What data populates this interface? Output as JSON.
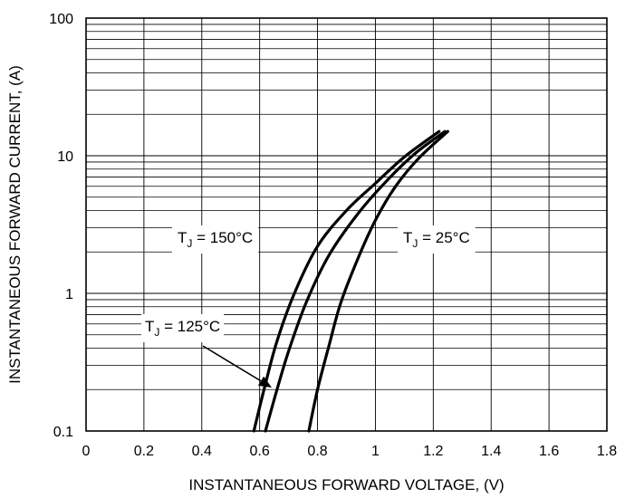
{
  "chart_data": {
    "type": "line",
    "title": "",
    "xlabel": "INSTANTANEOUS FORWARD VOLTAGE, (V)",
    "ylabel": "INSTANTANEOUS FORWARD CURRENT, (A)",
    "xlim": [
      0,
      1.8
    ],
    "ylim": [
      0.1,
      100
    ],
    "yscale": "log",
    "grid": true,
    "x_ticks": [
      0,
      0.2,
      0.4,
      0.6,
      0.8,
      1,
      1.2,
      1.4,
      1.6,
      1.8
    ],
    "x_tick_labels": [
      "0",
      "0.2",
      "0.4",
      "0.6",
      "0.8",
      "1",
      "1.2",
      "1.4",
      "1.6",
      "1.8"
    ],
    "y_ticks": [
      0.1,
      1,
      10,
      100
    ],
    "y_tick_labels": [
      "0.1",
      "1",
      "10",
      "100"
    ],
    "series": [
      {
        "name": "T_J = 150°C",
        "x": [
          0.58,
          0.62,
          0.66,
          0.72,
          0.8,
          0.9,
          1.0,
          1.1,
          1.22
        ],
        "y": [
          0.1,
          0.22,
          0.45,
          1.0,
          2.2,
          4.0,
          6.3,
          9.8,
          15
        ]
      },
      {
        "name": "T_J = 125°C",
        "x": [
          0.62,
          0.66,
          0.7,
          0.76,
          0.84,
          0.94,
          1.04,
          1.14,
          1.24
        ],
        "y": [
          0.1,
          0.2,
          0.38,
          0.85,
          1.9,
          3.8,
          6.6,
          10.5,
          15
        ]
      },
      {
        "name": "T_J = 25°C",
        "x": [
          0.77,
          0.8,
          0.84,
          0.88,
          0.94,
          1.0,
          1.07,
          1.15,
          1.25
        ],
        "y": [
          0.1,
          0.2,
          0.42,
          0.85,
          1.8,
          3.4,
          6.0,
          9.6,
          15
        ]
      }
    ],
    "annotations": [
      {
        "id": "t150",
        "prefix": "T",
        "sub": "J",
        "suffix": " = 150°C"
      },
      {
        "id": "t125",
        "prefix": "T",
        "sub": "J",
        "suffix": " = 125°C"
      },
      {
        "id": "t25",
        "prefix": "T",
        "sub": "J",
        "suffix": " = 25°C"
      }
    ]
  }
}
